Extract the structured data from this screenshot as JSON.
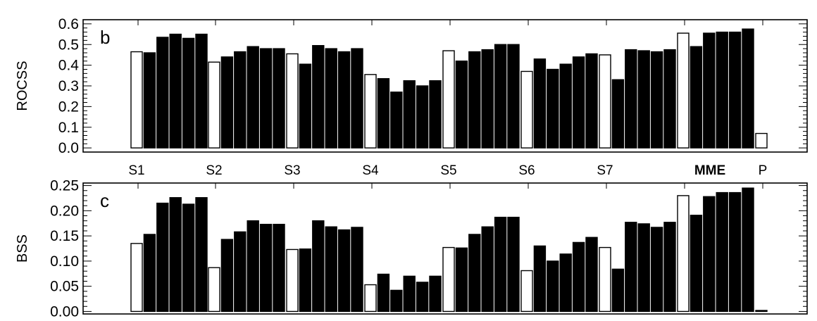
{
  "categories": [
    "S1",
    "S2",
    "S3",
    "S4",
    "S5",
    "S6",
    "S7",
    "MME",
    "P"
  ],
  "category_colors": {
    "default": "#000000",
    "highlight": "#8b1a3a"
  },
  "highlight_category": "MME",
  "bar_colors": {
    "open": "#ffffff",
    "filled": "#000000",
    "stroke": "#000000"
  },
  "chart_data": [
    {
      "type": "bar",
      "panel": "b",
      "ylabel": "ROCSS",
      "ylim": [
        -0.02,
        0.62
      ],
      "yticks": [
        "0.0",
        "0.1",
        "0.2",
        "0.3",
        "0.4",
        "0.5",
        "0.6"
      ],
      "yticks_values": [
        0.0,
        0.1,
        0.2,
        0.3,
        0.4,
        0.5,
        0.6
      ],
      "categories": [
        "S1",
        "S2",
        "S3",
        "S4",
        "S5",
        "S6",
        "S7",
        "MME",
        "P"
      ],
      "series_style": [
        "open",
        "filled",
        "filled",
        "filled",
        "filled",
        "filled"
      ],
      "groups": [
        {
          "category": "S1",
          "values": [
            0.465,
            0.46,
            0.535,
            0.55,
            0.53,
            0.55
          ]
        },
        {
          "category": "S2",
          "values": [
            0.415,
            0.44,
            0.465,
            0.49,
            0.48,
            0.48
          ]
        },
        {
          "category": "S3",
          "values": [
            0.455,
            0.405,
            0.495,
            0.48,
            0.465,
            0.48
          ]
        },
        {
          "category": "S4",
          "values": [
            0.355,
            0.335,
            0.27,
            0.325,
            0.3,
            0.325
          ]
        },
        {
          "category": "S5",
          "values": [
            0.47,
            0.42,
            0.465,
            0.475,
            0.5,
            0.5
          ]
        },
        {
          "category": "S6",
          "values": [
            0.37,
            0.43,
            0.38,
            0.405,
            0.44,
            0.455
          ]
        },
        {
          "category": "S7",
          "values": [
            0.45,
            0.33,
            0.475,
            0.47,
            0.465,
            0.475
          ]
        },
        {
          "category": "MME",
          "values": [
            0.555,
            0.49,
            0.555,
            0.56,
            0.56,
            0.575
          ]
        },
        {
          "category": "P",
          "values": [
            0.07
          ]
        }
      ],
      "grid": false
    },
    {
      "type": "bar",
      "panel": "c",
      "ylabel": "BSS",
      "ylim": [
        -0.005,
        0.255
      ],
      "yticks": [
        "0.00",
        "0.05",
        "0.10",
        "0.15",
        "0.20",
        "0.25"
      ],
      "yticks_values": [
        0.0,
        0.05,
        0.1,
        0.15,
        0.2,
        0.25
      ],
      "categories": [
        "S1",
        "S2",
        "S3",
        "S4",
        "S5",
        "S6",
        "S7",
        "MME",
        "P"
      ],
      "series_style": [
        "open",
        "filled",
        "filled",
        "filled",
        "filled",
        "filled"
      ],
      "groups": [
        {
          "category": "S1",
          "values": [
            0.135,
            0.153,
            0.215,
            0.226,
            0.213,
            0.226
          ]
        },
        {
          "category": "S2",
          "values": [
            0.087,
            0.143,
            0.158,
            0.18,
            0.173,
            0.173
          ]
        },
        {
          "category": "S3",
          "values": [
            0.123,
            0.124,
            0.18,
            0.168,
            0.162,
            0.167
          ]
        },
        {
          "category": "S4",
          "values": [
            0.053,
            0.074,
            0.042,
            0.07,
            0.058,
            0.07
          ]
        },
        {
          "category": "S5",
          "values": [
            0.127,
            0.126,
            0.153,
            0.168,
            0.187,
            0.187
          ]
        },
        {
          "category": "S6",
          "values": [
            0.081,
            0.13,
            0.1,
            0.114,
            0.137,
            0.147
          ]
        },
        {
          "category": "S7",
          "values": [
            0.127,
            0.084,
            0.177,
            0.174,
            0.167,
            0.177
          ]
        },
        {
          "category": "MME",
          "values": [
            0.23,
            0.191,
            0.228,
            0.236,
            0.236,
            0.245
          ]
        },
        {
          "category": "P",
          "values": [
            0.002
          ]
        }
      ],
      "grid": false
    }
  ]
}
